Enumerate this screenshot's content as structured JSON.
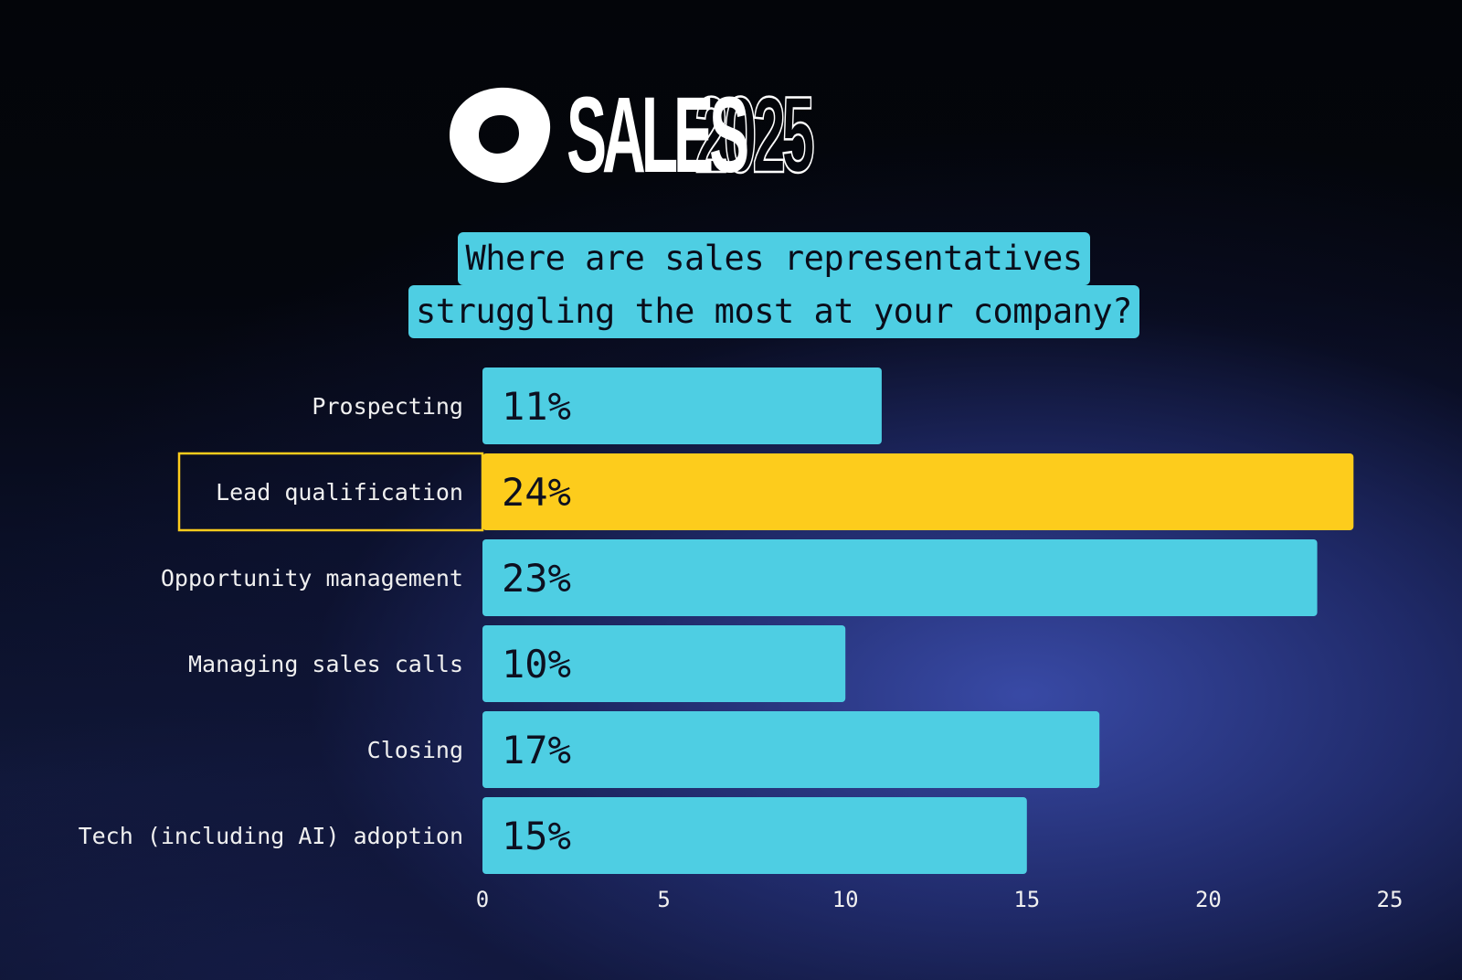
{
  "brand": {
    "sales_text": "SALES",
    "year_text": "2025"
  },
  "colors": {
    "bar": "#4ecee3",
    "highlight": "#fdcc1c",
    "label_text": "#f0f0f0",
    "bar_text": "#0d1020"
  },
  "chart_data": {
    "type": "bar",
    "orientation": "horizontal",
    "title": "Where are sales representatives struggling the most at your company?",
    "title_lines": [
      "Where are sales representatives",
      "struggling the most at your company?"
    ],
    "categories": [
      "Prospecting",
      "Lead qualification",
      "Opportunity management",
      "Managing sales calls",
      "Closing",
      "Tech (including AI) adoption"
    ],
    "values": [
      11,
      24,
      23,
      10,
      17,
      15
    ],
    "value_labels": [
      "11%",
      "24%",
      "23%",
      "10%",
      "17%",
      "15%"
    ],
    "highlighted_category": "Lead qualification",
    "xlim": [
      0,
      25
    ],
    "xticks": [
      0,
      5,
      10,
      15,
      20,
      25
    ],
    "xlabel": "",
    "ylabel": "",
    "grid": false,
    "legend": "none"
  }
}
